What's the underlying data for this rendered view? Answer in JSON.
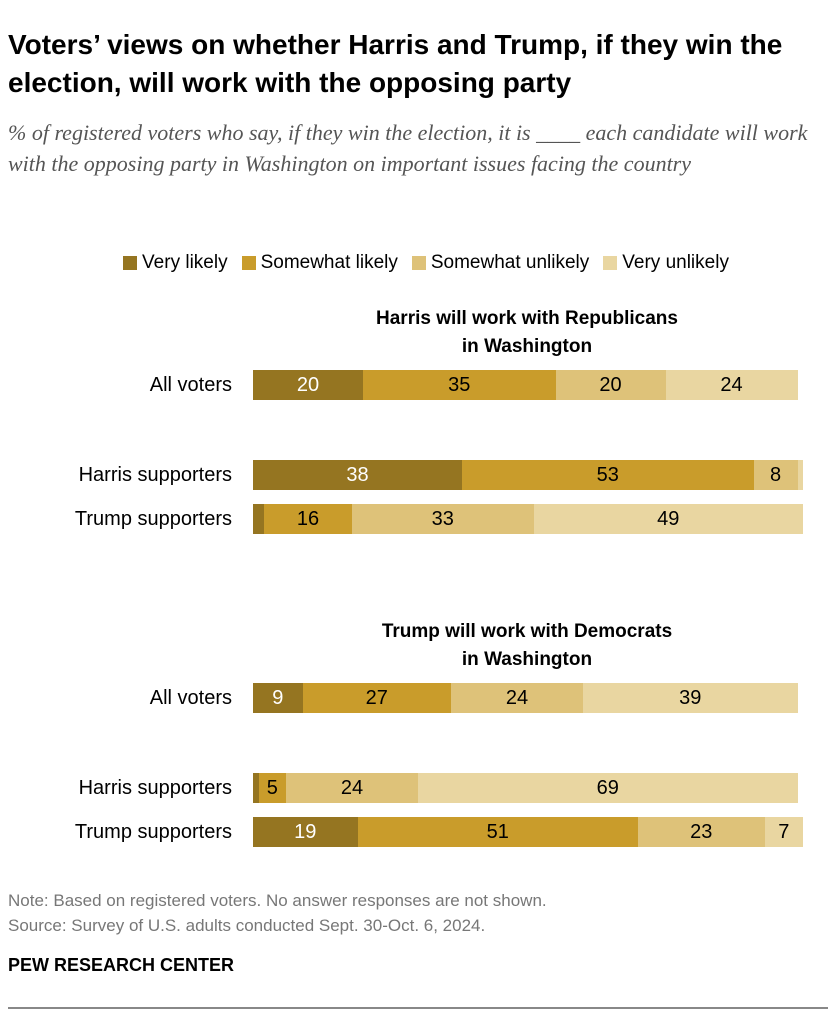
{
  "title": "Voters’ views on whether Harris and Trump, if they win the election, will work with the opposing party",
  "subtitle": "% of registered voters who say, if they win the election, it is ____ each candidate will work with the opposing party in Washington on important issues facing the country",
  "chart_data": {
    "type": "bar",
    "orientation": "horizontal-stacked",
    "legend": [
      "Very likely",
      "Somewhat likely",
      "Somewhat unlikely",
      "Very unlikely"
    ],
    "legend_position": "top",
    "colors": [
      "#957521",
      "#C99C2B",
      "#DEC279",
      "#E9D6A1"
    ],
    "label_colors": [
      "#ffffff",
      "#000000",
      "#000000",
      "#000000"
    ],
    "panels": [
      {
        "title": "Harris will work with Republicans in Washington",
        "rows": [
          {
            "label": "All voters",
            "values": [
              20,
              35,
              20,
              24
            ]
          },
          {
            "label": "Harris supporters",
            "values": [
              38,
              53,
              8,
              1
            ],
            "labels": [
              "38",
              "53",
              "8",
              ""
            ]
          },
          {
            "label": "Trump supporters",
            "values": [
              2,
              16,
              33,
              49
            ],
            "labels": [
              "",
              "16",
              "33",
              "49"
            ]
          }
        ]
      },
      {
        "title": "Trump will work with Democrats in Washington",
        "rows": [
          {
            "label": "All voters",
            "values": [
              9,
              27,
              24,
              39
            ]
          },
          {
            "label": "Harris supporters",
            "values": [
              1,
              5,
              24,
              69
            ],
            "labels": [
              "",
              "5",
              "24",
              "69"
            ]
          },
          {
            "label": "Trump supporters",
            "values": [
              19,
              51,
              23,
              7
            ]
          }
        ]
      }
    ]
  },
  "notes": [
    "Note: Based on registered voters. No answer responses are not shown.",
    "Source: Survey of U.S. adults conducted Sept. 30-Oct. 6, 2024."
  ],
  "brand": "PEW RESEARCH CENTER"
}
